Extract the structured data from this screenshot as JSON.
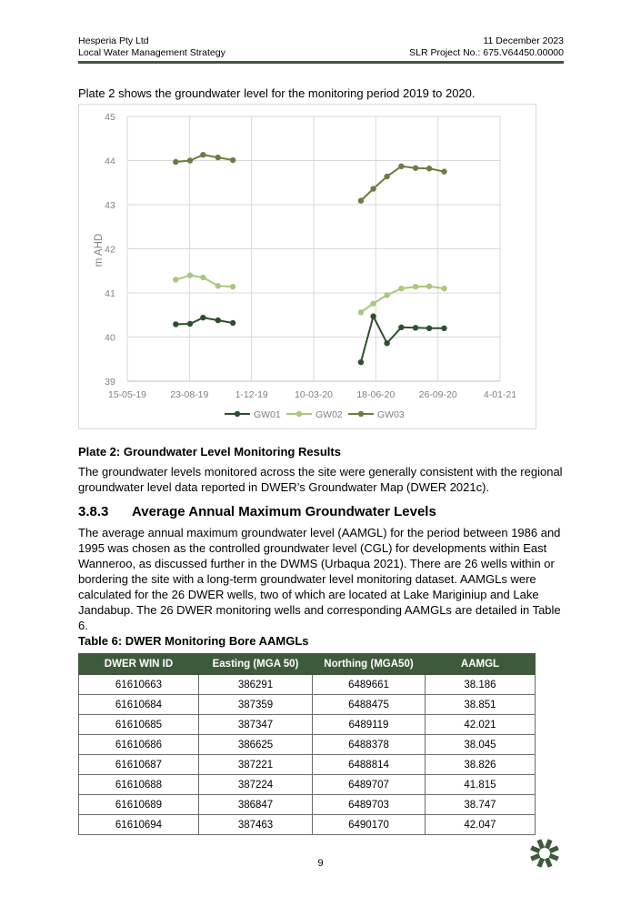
{
  "header": {
    "company": "Hesperia Pty Ltd",
    "date": "11 December 2023",
    "doc_title": "Local Water Management Strategy",
    "project": "SLR Project No.: 675.V64450.00000"
  },
  "intro_text": "Plate 2 shows the groundwater level for the monitoring period 2019 to 2020.",
  "chart_data": {
    "type": "line",
    "ylabel": "m AHD",
    "ylim": [
      39,
      45
    ],
    "yticks": [
      "39",
      "40",
      "41",
      "42",
      "43",
      "44",
      "45"
    ],
    "xlim": [
      "2019-05-15",
      "2021-01-04"
    ],
    "xticks": [
      "15-05-19",
      "23-08-19",
      "1-12-19",
      "10-03-20",
      "18-06-20",
      "26-09-20",
      "4-01-21"
    ],
    "grid": true,
    "legend_position": "bottom",
    "series": [
      {
        "name": "GW01",
        "color": "#2e4f2e",
        "segments": [
          [
            [
              "2019-08-01",
              40.29
            ],
            [
              "2019-08-24",
              40.3
            ],
            [
              "2019-09-14",
              40.44
            ],
            [
              "2019-10-08",
              40.38
            ],
            [
              "2019-11-01",
              40.32
            ]
          ],
          [
            [
              "2020-05-25",
              39.43
            ],
            [
              "2020-06-14",
              40.47
            ],
            [
              "2020-07-06",
              39.86
            ],
            [
              "2020-07-29",
              40.22
            ],
            [
              "2020-08-21",
              40.21
            ],
            [
              "2020-09-12",
              40.2
            ],
            [
              "2020-10-06",
              40.2
            ]
          ]
        ]
      },
      {
        "name": "GW02",
        "color": "#a9c77e",
        "segments": [
          [
            [
              "2019-08-01",
              41.3
            ],
            [
              "2019-08-24",
              41.4
            ],
            [
              "2019-09-14",
              41.35
            ],
            [
              "2019-10-08",
              41.16
            ],
            [
              "2019-11-01",
              41.14
            ]
          ],
          [
            [
              "2020-05-25",
              40.56
            ],
            [
              "2020-06-14",
              40.76
            ],
            [
              "2020-07-06",
              40.95
            ],
            [
              "2020-07-29",
              41.1
            ],
            [
              "2020-08-21",
              41.14
            ],
            [
              "2020-09-12",
              41.15
            ],
            [
              "2020-10-06",
              41.1
            ]
          ]
        ]
      },
      {
        "name": "GW03",
        "color": "#6b7d3f",
        "segments": [
          [
            [
              "2019-08-01",
              43.97
            ],
            [
              "2019-08-24",
              44.0
            ],
            [
              "2019-09-14",
              44.13
            ],
            [
              "2019-10-08",
              44.07
            ],
            [
              "2019-11-01",
              44.01
            ]
          ],
          [
            [
              "2020-05-25",
              43.09
            ],
            [
              "2020-06-14",
              43.36
            ],
            [
              "2020-07-06",
              43.64
            ],
            [
              "2020-07-29",
              43.87
            ],
            [
              "2020-08-21",
              43.83
            ],
            [
              "2020-09-12",
              43.82
            ],
            [
              "2020-10-06",
              43.75
            ]
          ]
        ]
      }
    ]
  },
  "plate_caption": "Plate 2: Groundwater Level Monitoring Results",
  "levels_text": "The groundwater levels monitored across the site were generally consistent with the regional groundwater level data reported in DWER’s Groundwater Map (DWER 2021c).",
  "section": {
    "number": "3.8.3",
    "title": "Average Annual Maximum Groundwater Levels"
  },
  "aamgl_text": "The average annual maximum groundwater level (AAMGL) for the period between 1986 and 1995 was chosen as the controlled groundwater level (CGL) for developments within East Wanneroo, as discussed further in the DWMS (Urbaqua 2021). There are 26 wells within or bordering the site with a long-term groundwater level monitoring dataset. AAMGLs were calculated for the 26 DWER wells, two of which are located at Lake Mariginiup and Lake Jandabup. The 26 DWER monitoring wells and corresponding AAMGLs are detailed in Table 6.",
  "table_caption": "Table 6: DWER Monitoring Bore AAMGLs",
  "table": {
    "headers": [
      "DWER WIN ID",
      "Easting (MGA 50)",
      "Northing (MGA50)",
      "AAMGL"
    ],
    "rows": [
      [
        "61610663",
        "386291",
        "6489661",
        "38.186"
      ],
      [
        "61610684",
        "387359",
        "6488475",
        "38.851"
      ],
      [
        "61610685",
        "387347",
        "6489119",
        "42.021"
      ],
      [
        "61610686",
        "386625",
        "6488378",
        "38.045"
      ],
      [
        "61610687",
        "387221",
        "6488814",
        "38.826"
      ],
      [
        "61610688",
        "387224",
        "6489707",
        "41.815"
      ],
      [
        "61610689",
        "386847",
        "6489703",
        "38.747"
      ],
      [
        "61610694",
        "387463",
        "6490170",
        "42.047"
      ]
    ]
  },
  "page_number": "9",
  "brand_color": "#3d5a3a",
  "logo_icon": "slr-asterisk-logo"
}
